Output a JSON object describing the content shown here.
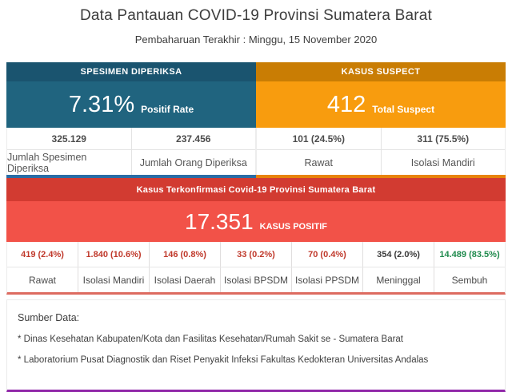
{
  "page": {
    "title": "Data Pantauan COVID-19 Provinsi Sumatera Barat",
    "subtitle": "Pembaharuan Terakhir : Minggu, 15 November 2020"
  },
  "spesimen": {
    "header": "SPESIMEN DIPERIKSA",
    "big_value": "7.31%",
    "big_label": "Positif Rate",
    "cells": [
      {
        "value": "325.129",
        "label": "Jumlah Spesimen Diperiksa"
      },
      {
        "value": "237.456",
        "label": "Jumlah Orang Diperiksa"
      }
    ],
    "colors": {
      "header_bg": "#1a546f",
      "body_bg": "#20647f",
      "accent_border": "#2a6ca5"
    }
  },
  "suspect": {
    "header": "KASUS SUSPECT",
    "big_value": "412",
    "big_label": "Total Suspect",
    "cells": [
      {
        "value": "101 (24.5%)",
        "label": "Rawat"
      },
      {
        "value": "311 (75.5%)",
        "label": "Isolasi Mandiri"
      }
    ],
    "colors": {
      "header_bg": "#c97d04",
      "body_bg": "#f89c0e",
      "accent_border": "#e8830b"
    }
  },
  "confirmed": {
    "header": "Kasus Terkonfirmasi Covid-19 Provinsi Sumatera Barat",
    "big_value": "17.351",
    "big_label": "KASUS POSITIF",
    "cells": [
      {
        "value": "419 (2.4%)",
        "label": "Rawat",
        "value_color": "#c0392b"
      },
      {
        "value": "1.840 (10.6%)",
        "label": "Isolasi Mandiri",
        "value_color": "#c0392b"
      },
      {
        "value": "146 (0.8%)",
        "label": "Isolasi Daerah",
        "value_color": "#c0392b"
      },
      {
        "value": "33 (0.2%)",
        "label": "Isolasi BPSDM",
        "value_color": "#c0392b"
      },
      {
        "value": "70 (0.4%)",
        "label": "Isolasi PPSDM",
        "value_color": "#c0392b"
      },
      {
        "value": "354 (2.0%)",
        "label": "Meninggal",
        "value_color": "#3a3a3a"
      },
      {
        "value": "14.489 (83.5%)",
        "label": "Sembuh",
        "value_color": "#1e8a4c"
      }
    ],
    "colors": {
      "header_bg": "#d23b31",
      "body_bg": "#f25248",
      "table_border": "#dd6b60"
    }
  },
  "sources": {
    "heading": "Sumber Data:",
    "items": [
      "* Dinas Kesehatan Kabupaten/Kota dan Fasilitas Kesehatan/Rumah Sakit se - Sumatera Barat",
      "* Laboratorium Pusat Diagnostik dan Riset Penyakit Infeksi Fakultas Kedokteran Universitas Andalas"
    ],
    "accent_color": "#9027a8"
  }
}
